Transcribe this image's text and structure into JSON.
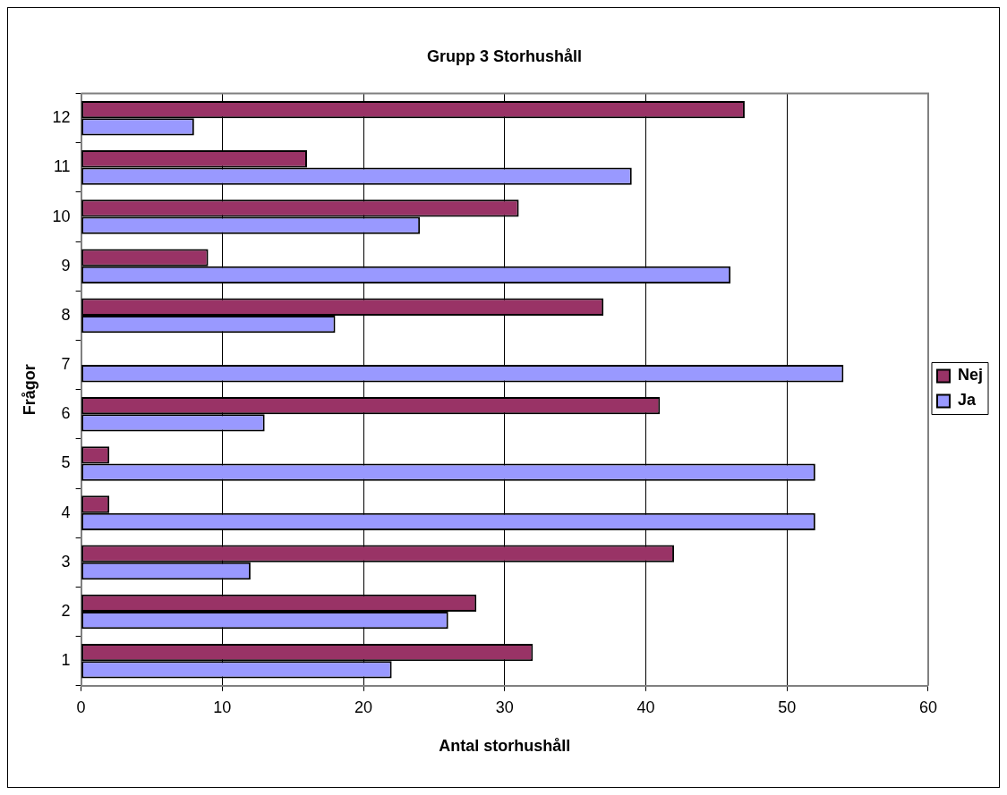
{
  "chart_data": {
    "type": "bar",
    "orientation": "horizontal",
    "title": "Grupp 3 Storhushåll",
    "xlabel": "Antal storhushåll",
    "ylabel": "Frågor",
    "categories": [
      "12",
      "11",
      "10",
      "9",
      "8",
      "7",
      "6",
      "5",
      "4",
      "3",
      "2",
      "1"
    ],
    "series": [
      {
        "name": "Nej",
        "color": "#993366",
        "values": [
          47,
          16,
          31,
          9,
          37,
          0,
          41,
          2,
          2,
          42,
          28,
          32
        ]
      },
      {
        "name": "Ja",
        "color": "#9999ff",
        "values": [
          8,
          39,
          24,
          46,
          18,
          54,
          13,
          52,
          52,
          12,
          26,
          22
        ]
      }
    ],
    "xlim": [
      0,
      60
    ],
    "xticks": [
      0,
      10,
      20,
      30,
      40,
      50,
      60
    ],
    "grid": "x",
    "legend": "right"
  }
}
